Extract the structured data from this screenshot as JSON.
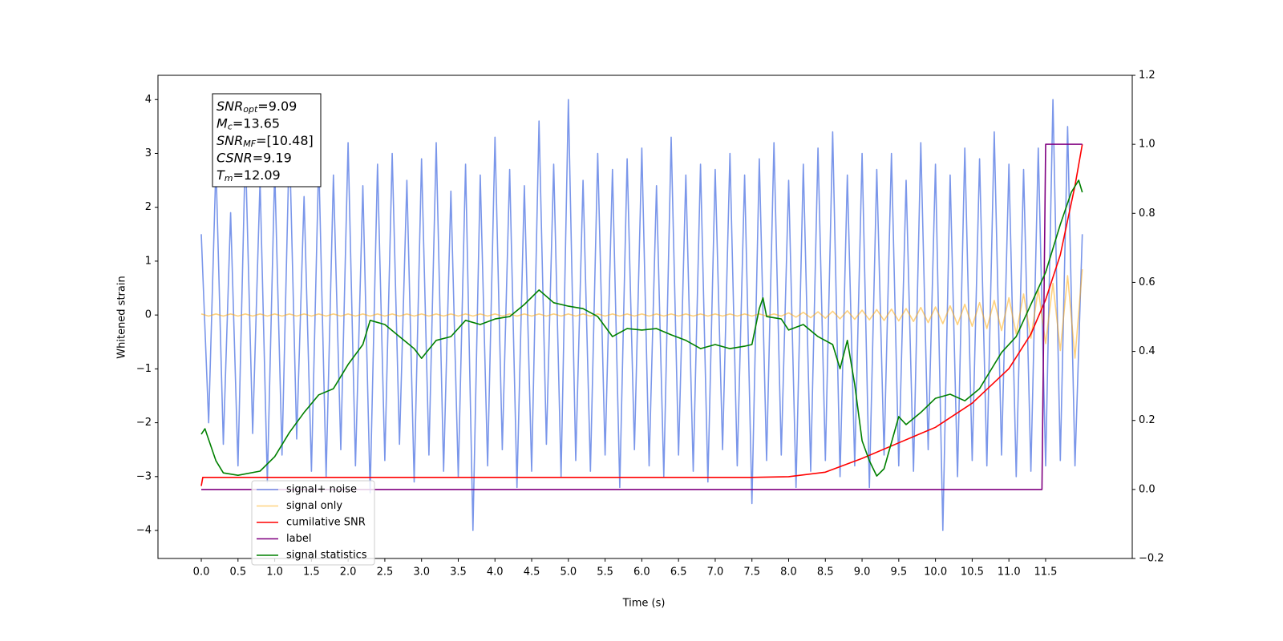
{
  "chart_data": {
    "type": "line",
    "xlabel": "Time (s)",
    "ylabel": "Whitened strain",
    "xlim": [
      -0.59,
      12.68
    ],
    "ylim": [
      -4.52,
      4.45
    ],
    "y2lim": [
      -0.2,
      1.2
    ],
    "xticks": [
      {
        "value": 0,
        "label": "0.0"
      },
      0.5,
      {
        "value": 1,
        "label": "1.0"
      },
      1.5,
      {
        "value": 2,
        "label": "2.0"
      },
      2.5,
      {
        "value": 3,
        "label": "3.0"
      },
      3.5,
      {
        "value": 4,
        "label": "4.0"
      },
      4.5,
      {
        "value": 5,
        "label": "5.0"
      },
      5.5,
      {
        "value": 6,
        "label": "6.0"
      },
      6.5,
      {
        "value": 7,
        "label": "7.0"
      },
      7.5,
      {
        "value": 8,
        "label": "8.0"
      },
      8.5,
      {
        "value": 9,
        "label": "9.0"
      },
      9.5,
      {
        "value": 10,
        "label": "10.0"
      },
      10.5,
      {
        "value": 11,
        "label": "11.0"
      },
      11.5
    ],
    "yticks": [
      {
        "value": -4,
        "label": "−4"
      },
      {
        "value": -3,
        "label": "−3"
      },
      {
        "value": -2,
        "label": "−2"
      },
      {
        "value": -1,
        "label": "−1"
      },
      0,
      1,
      2,
      3,
      4
    ],
    "y2ticks": [
      {
        "value": -0.2,
        "label": "−0.2"
      },
      {
        "value": 0,
        "label": "0.0"
      },
      0.2,
      0.4,
      0.6,
      0.8,
      {
        "value": 1,
        "label": "1.0"
      },
      1.2
    ],
    "legend": "lower left",
    "annotations": [
      {
        "symbol": "SNR",
        "subscript": "opt",
        "text": "=9.09"
      },
      {
        "symbol": "M",
        "subscript": "c",
        "text": "=13.65"
      },
      {
        "symbol": "SNR",
        "subscript": "MF",
        "text": "=[10.48]"
      },
      {
        "symbol": "CSNR",
        "subscript": null,
        "text": "=9.19"
      },
      {
        "symbol": "T",
        "subscript": "m",
        "text": "=12.09"
      }
    ],
    "x": [
      0,
      0.1,
      0.2,
      0.3,
      0.4,
      0.5,
      0.6,
      0.7,
      0.8,
      0.9,
      1,
      1.1,
      1.2,
      1.3,
      1.4,
      1.5,
      1.6,
      1.7,
      1.8,
      1.9,
      2,
      2.1,
      2.2,
      2.3,
      2.4,
      2.5,
      2.6,
      2.7,
      2.8,
      2.9,
      3,
      3.1,
      3.2,
      3.3,
      3.4,
      3.5,
      3.6,
      3.7,
      3.8,
      3.9,
      4,
      4.1,
      4.2,
      4.3,
      4.4,
      4.5,
      4.6,
      4.7,
      4.8,
      4.9,
      5,
      5.1,
      5.2,
      5.3,
      5.4,
      5.5,
      5.6,
      5.7,
      5.8,
      5.9,
      6,
      6.1,
      6.2,
      6.3,
      6.4,
      6.5,
      6.6,
      6.7,
      6.8,
      6.9,
      7,
      7.1,
      7.2,
      7.3,
      7.4,
      7.5,
      7.6,
      7.7,
      7.8,
      7.9,
      8,
      8.1,
      8.2,
      8.3,
      8.4,
      8.5,
      8.6,
      8.7,
      8.8,
      8.9,
      9,
      9.1,
      9.2,
      9.3,
      9.4,
      9.5,
      9.6,
      9.7,
      9.8,
      9.9,
      10,
      10.1,
      10.2,
      10.3,
      10.4,
      10.5,
      10.6,
      10.7,
      10.8,
      10.9,
      11,
      11.1,
      11.2,
      11.3,
      11.4,
      11.5,
      11.6,
      11.7,
      11.8,
      11.9,
      12
    ],
    "series": [
      {
        "name": "signal+ noise",
        "color": "#4169e1",
        "alpha": 0.7,
        "values": [
          1.5,
          -2.0,
          2.8,
          -2.4,
          1.9,
          -2.8,
          3.1,
          -2.2,
          2.5,
          -3.1,
          2.7,
          -2.6,
          3.3,
          -2.3,
          2.2,
          -2.9,
          2.9,
          -3.0,
          2.6,
          -2.5,
          3.2,
          -2.8,
          2.4,
          -3.3,
          2.8,
          -2.7,
          3.0,
          -2.4,
          2.5,
          -3.1,
          2.9,
          -2.6,
          3.2,
          -2.9,
          2.3,
          -3.0,
          2.8,
          -4.0,
          2.6,
          -2.8,
          3.3,
          -2.5,
          2.7,
          -3.2,
          2.4,
          -2.9,
          3.6,
          -2.4,
          2.8,
          -3.0,
          4.0,
          -2.7,
          2.5,
          -2.9,
          3.0,
          -2.6,
          2.7,
          -3.2,
          2.9,
          -2.5,
          3.1,
          -2.8,
          2.4,
          -3.0,
          3.3,
          -2.6,
          2.6,
          -2.9,
          2.8,
          -3.1,
          2.7,
          -2.5,
          3.0,
          -2.8,
          2.6,
          -3.5,
          2.9,
          -2.7,
          3.2,
          -2.6,
          2.5,
          -3.2,
          2.8,
          -2.9,
          3.1,
          -2.7,
          3.4,
          -3.0,
          2.6,
          -2.8,
          3.0,
          -3.2,
          2.7,
          -2.6,
          3.0,
          -2.8,
          2.5,
          -2.9,
          3.2,
          -2.5,
          2.8,
          -4.0,
          2.6,
          -3.0,
          3.1,
          -2.7,
          2.9,
          -2.8,
          3.4,
          -2.6,
          2.8,
          -3.0,
          2.7,
          -2.9,
          3.1,
          -2.8,
          4.0,
          -2.7,
          3.5,
          -2.8,
          1.5
        ]
      },
      {
        "name": "signal only",
        "color": "#ffa500",
        "alpha": 0.5,
        "values": [
          0.02,
          -0.02,
          0.02,
          -0.02,
          0.02,
          -0.02,
          0.02,
          -0.02,
          0.02,
          -0.02,
          0.02,
          -0.02,
          0.02,
          -0.02,
          0.02,
          -0.02,
          0.02,
          -0.02,
          0.02,
          -0.02,
          0.02,
          -0.02,
          0.02,
          -0.02,
          0.02,
          -0.02,
          0.02,
          -0.02,
          0.02,
          -0.02,
          0.02,
          -0.02,
          0.02,
          -0.02,
          0.02,
          -0.02,
          0.02,
          -0.02,
          0.02,
          -0.02,
          0.02,
          -0.02,
          0.02,
          -0.02,
          0.02,
          -0.02,
          0.02,
          -0.02,
          0.02,
          -0.02,
          0.02,
          -0.02,
          0.02,
          -0.02,
          0.02,
          -0.02,
          0.02,
          -0.02,
          0.02,
          -0.02,
          0.02,
          -0.02,
          0.02,
          -0.02,
          0.02,
          -0.02,
          0.02,
          -0.02,
          0.02,
          -0.02,
          0.02,
          -0.02,
          0.02,
          -0.02,
          0.02,
          -0.02,
          0.02,
          -0.02,
          0.02,
          -0.02,
          0.04,
          -0.04,
          0.05,
          -0.05,
          0.06,
          -0.06,
          0.07,
          -0.07,
          0.08,
          -0.08,
          0.09,
          -0.09,
          0.1,
          -0.1,
          0.11,
          -0.11,
          0.12,
          -0.12,
          0.14,
          -0.14,
          0.15,
          -0.16,
          0.17,
          -0.18,
          0.2,
          -0.21,
          0.23,
          -0.25,
          0.27,
          -0.29,
          0.32,
          -0.35,
          0.39,
          -0.43,
          0.48,
          -0.53,
          0.59,
          -0.66,
          0.73,
          -0.8,
          0.85
        ]
      },
      {
        "name": "cumilative SNR",
        "color": "#ff0000",
        "axis": "y2",
        "x": [
          0,
          0.02,
          1,
          2,
          3,
          4,
          5,
          6,
          7,
          7.5,
          8,
          8.5,
          9,
          9.5,
          10,
          10.5,
          11,
          11.3,
          11.5,
          11.7,
          11.8,
          11.9,
          12
        ],
        "values": [
          0.01,
          0.035,
          0.035,
          0.035,
          0.035,
          0.035,
          0.035,
          0.035,
          0.035,
          0.035,
          0.037,
          0.05,
          0.09,
          0.135,
          0.18,
          0.25,
          0.35,
          0.45,
          0.55,
          0.68,
          0.78,
          0.88,
          1.0
        ]
      },
      {
        "name": "label",
        "color": "#800080",
        "axis": "y2",
        "x": [
          0,
          11.45,
          11.5,
          12
        ],
        "values": [
          0,
          0,
          1,
          1
        ]
      },
      {
        "name": "signal statistics",
        "color": "#008000",
        "axis": "y2",
        "x": [
          0,
          0.05,
          0.2,
          0.3,
          0.5,
          0.8,
          1.0,
          1.2,
          1.4,
          1.6,
          1.8,
          2.0,
          2.2,
          2.3,
          2.5,
          2.7,
          2.9,
          3.0,
          3.2,
          3.4,
          3.6,
          3.8,
          4.0,
          4.2,
          4.4,
          4.6,
          4.8,
          5.0,
          5.2,
          5.4,
          5.6,
          5.8,
          6.0,
          6.2,
          6.4,
          6.6,
          6.8,
          7.0,
          7.2,
          7.4,
          7.5,
          7.6,
          7.65,
          7.7,
          7.9,
          8.0,
          8.2,
          8.4,
          8.6,
          8.7,
          8.8,
          8.9,
          9.0,
          9.1,
          9.2,
          9.3,
          9.5,
          9.6,
          9.8,
          10.0,
          10.2,
          10.4,
          10.6,
          10.7,
          10.9,
          11.1,
          11.3,
          11.5,
          11.7,
          11.85,
          11.95,
          12.0
        ],
        "values": [
          0.16,
          0.176,
          0.083,
          0.048,
          0.041,
          0.053,
          0.095,
          0.165,
          0.223,
          0.274,
          0.292,
          0.362,
          0.42,
          0.49,
          0.478,
          0.443,
          0.408,
          0.38,
          0.432,
          0.443,
          0.49,
          0.478,
          0.494,
          0.501,
          0.536,
          0.578,
          0.541,
          0.531,
          0.524,
          0.501,
          0.443,
          0.466,
          0.462,
          0.466,
          0.448,
          0.432,
          0.408,
          0.42,
          0.408,
          0.415,
          0.42,
          0.524,
          0.555,
          0.501,
          0.494,
          0.462,
          0.478,
          0.443,
          0.42,
          0.35,
          0.432,
          0.304,
          0.141,
          0.083,
          0.039,
          0.06,
          0.211,
          0.188,
          0.223,
          0.264,
          0.276,
          0.257,
          0.292,
          0.327,
          0.397,
          0.443,
          0.536,
          0.629,
          0.768,
          0.861,
          0.896,
          0.861
        ]
      }
    ]
  }
}
